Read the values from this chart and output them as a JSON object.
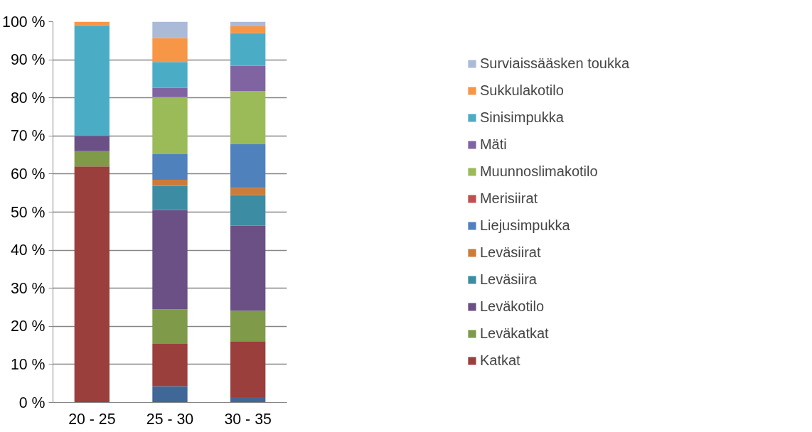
{
  "chart_data": {
    "type": "bar",
    "stacked": true,
    "categories": [
      "20 - 25",
      "25 - 30",
      "30 - 35"
    ],
    "ylim": [
      0,
      100
    ],
    "yticks": [
      {
        "value": 0,
        "label": "0 %"
      },
      {
        "value": 10,
        "label": "10 %"
      },
      {
        "value": 20,
        "label": "20 %"
      },
      {
        "value": 30,
        "label": "30 %"
      },
      {
        "value": 40,
        "label": "40 %"
      },
      {
        "value": 50,
        "label": "50 %"
      },
      {
        "value": 60,
        "label": "60 %"
      },
      {
        "value": 70,
        "label": "70 %"
      },
      {
        "value": 80,
        "label": "80 %"
      },
      {
        "value": 90,
        "label": "90 %"
      },
      {
        "value": 100,
        "label": "100 %"
      }
    ],
    "grid": "y",
    "legend": "right",
    "series": [
      {
        "color": "#3f6899",
        "values": [
          0,
          4.3,
          1.4
        ]
      },
      {
        "name": "Katkat",
        "color": "#9b3f3c",
        "values": [
          62,
          11.1,
          14.7
        ]
      },
      {
        "name": "Leväkatkat",
        "color": "#7f9a48",
        "values": [
          4,
          9.1,
          8.0
        ]
      },
      {
        "name": "Leväkotilo",
        "color": "#6a5084",
        "values": [
          4,
          26.0,
          22.3
        ]
      },
      {
        "name": "Leväsiira",
        "color": "#3c8da3",
        "values": [
          0,
          6.4,
          8.1
        ]
      },
      {
        "name": "Leväsiirat",
        "color": "#cc7b38",
        "values": [
          0,
          1.6,
          1.9
        ]
      },
      {
        "name": "Liejusimpukka",
        "color": "#4f81bd",
        "values": [
          0,
          6.7,
          11.4
        ]
      },
      {
        "name": "Merisiirat",
        "color": "#c0504d",
        "values": [
          0,
          0,
          0
        ]
      },
      {
        "name": "Muunnoslimakotilo",
        "color": "#9bbb59",
        "values": [
          0,
          15.0,
          14.0
        ]
      },
      {
        "name": "Mäti",
        "color": "#8064a2",
        "values": [
          0,
          2.4,
          6.6
        ]
      },
      {
        "name": "Sinisimpukka",
        "color": "#4bacc6",
        "values": [
          29,
          6.8,
          8.6
        ]
      },
      {
        "name": "Sukkulakotilo",
        "color": "#f79646",
        "values": [
          1,
          6.3,
          1.8
        ]
      },
      {
        "name": "Surviaissääsken toukka",
        "color": "#aabad7",
        "values": [
          0,
          4.3,
          1.2
        ]
      }
    ]
  }
}
